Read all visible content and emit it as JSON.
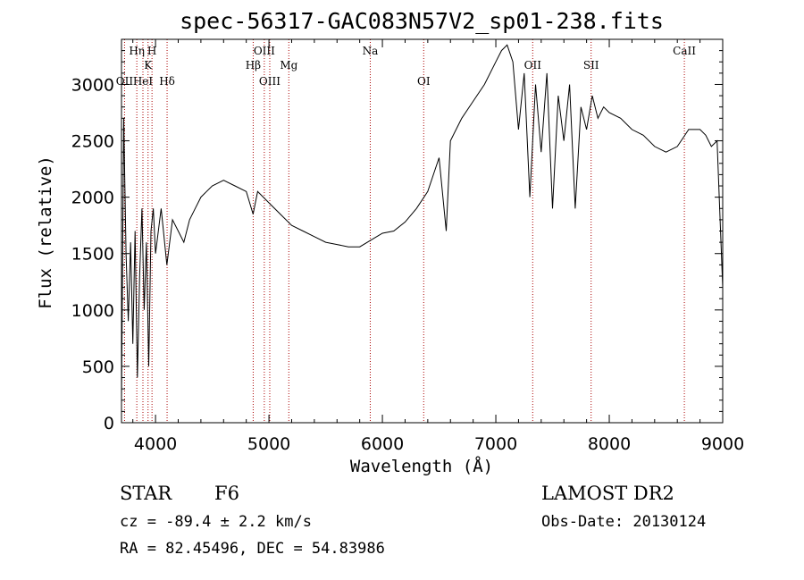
{
  "chart_data": {
    "type": "line",
    "title": "spec-56317-GAC083N57V2_sp01-238.fits",
    "xlabel": "Wavelength (Å)",
    "ylabel": "Flux (relative)",
    "xlim": [
      3700,
      9000
    ],
    "ylim": [
      0,
      3400
    ],
    "x_ticks": [
      4000,
      5000,
      6000,
      7000,
      8000,
      9000
    ],
    "y_ticks": [
      0,
      500,
      1000,
      1500,
      2000,
      2500,
      3000
    ],
    "grid": false,
    "line_color": "#000000",
    "marker_color": "#aa0000",
    "x": [
      3700,
      3720,
      3740,
      3760,
      3780,
      3800,
      3820,
      3840,
      3860,
      3880,
      3900,
      3920,
      3940,
      3960,
      3980,
      4000,
      4050,
      4100,
      4150,
      4200,
      4250,
      4300,
      4350,
      4400,
      4450,
      4500,
      4600,
      4700,
      4800,
      4860,
      4900,
      5000,
      5100,
      5200,
      5300,
      5400,
      5500,
      5600,
      5700,
      5800,
      5900,
      6000,
      6100,
      6200,
      6300,
      6400,
      6500,
      6563,
      6600,
      6700,
      6800,
      6900,
      7000,
      7050,
      7100,
      7150,
      7200,
      7250,
      7300,
      7350,
      7400,
      7450,
      7500,
      7550,
      7600,
      7650,
      7700,
      7750,
      7800,
      7850,
      7900,
      7950,
      8000,
      8100,
      8200,
      8300,
      8400,
      8500,
      8600,
      8700,
      8800,
      8850,
      8900,
      8950,
      9000
    ],
    "y": [
      200,
      2700,
      1500,
      900,
      1600,
      700,
      1700,
      400,
      1300,
      1900,
      1000,
      1600,
      500,
      1700,
      1900,
      1500,
      1900,
      1400,
      1800,
      1700,
      1600,
      1800,
      1900,
      2000,
      2050,
      2100,
      2150,
      2100,
      2050,
      1850,
      2050,
      1950,
      1850,
      1750,
      1700,
      1650,
      1600,
      1580,
      1560,
      1560,
      1620,
      1680,
      1700,
      1780,
      1900,
      2050,
      2350,
      1700,
      2500,
      2700,
      2850,
      3000,
      3200,
      3300,
      3350,
      3200,
      2600,
      3100,
      2000,
      3000,
      2400,
      3100,
      1900,
      2900,
      2500,
      3000,
      1900,
      2800,
      2600,
      2900,
      2700,
      2800,
      2750,
      2700,
      2600,
      2550,
      2450,
      2400,
      2450,
      2600,
      2600,
      2550,
      2450,
      2500,
      1200
    ],
    "lines": [
      {
        "label": "OII",
        "x": 3727,
        "row": 2
      },
      {
        "label": "Hη",
        "x": 3835,
        "row": 0
      },
      {
        "label": "HeI",
        "x": 3889,
        "row": 2
      },
      {
        "label": "K",
        "x": 3934,
        "row": 1
      },
      {
        "label": "H",
        "x": 3969,
        "row": 0
      },
      {
        "label": "Hδ",
        "x": 4102,
        "row": 2
      },
      {
        "label": "Hβ",
        "x": 4861,
        "row": 1
      },
      {
        "label": "OIII",
        "x": 4959,
        "row": 0
      },
      {
        "label": "OIII",
        "x": 5007,
        "row": 2
      },
      {
        "label": "Mg",
        "x": 5175,
        "row": 1
      },
      {
        "label": "Na",
        "x": 5893,
        "row": 0
      },
      {
        "label": "OI",
        "x": 6364,
        "row": 2
      },
      {
        "label": "OII",
        "x": 7325,
        "row": 1
      },
      {
        "label": "SII",
        "x": 7840,
        "row": 1
      },
      {
        "label": "CaII",
        "x": 8662,
        "row": 0
      }
    ]
  },
  "info": {
    "class_label": "STAR",
    "subclass": "F6",
    "survey": "LAMOST DR2",
    "cz": "cz = -89.4 ± 2.2 km/s",
    "obs_date": "Obs-Date: 20130124",
    "radec": "RA =  82.45496, DEC =  54.83986"
  }
}
